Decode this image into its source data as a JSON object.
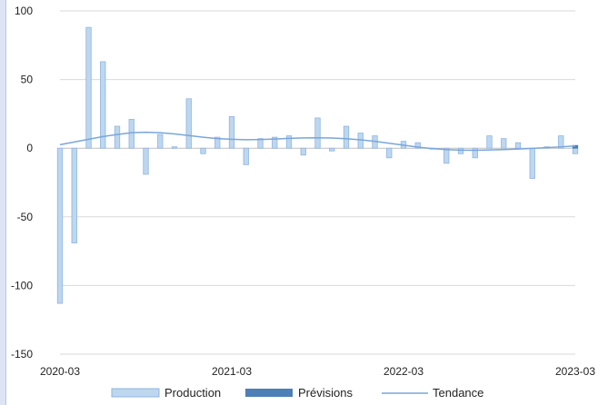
{
  "chart_data": {
    "type": "bar",
    "title": "",
    "xlabel": "",
    "ylabel": "",
    "ylim": [
      -150,
      100
    ],
    "y_ticks": [
      100,
      50,
      0,
      -50,
      -100,
      -150
    ],
    "x_tick_labels": [
      "2020-03",
      "2021-03",
      "2022-03",
      "2023-03"
    ],
    "x": [
      "2020-03",
      "2020-04",
      "2020-05",
      "2020-06",
      "2020-07",
      "2020-08",
      "2020-09",
      "2020-10",
      "2020-11",
      "2020-12",
      "2021-01",
      "2021-02",
      "2021-03",
      "2021-04",
      "2021-05",
      "2021-06",
      "2021-07",
      "2021-08",
      "2021-09",
      "2021-10",
      "2021-11",
      "2021-12",
      "2022-01",
      "2022-02",
      "2022-03",
      "2022-04",
      "2022-05",
      "2022-06",
      "2022-07",
      "2022-08",
      "2022-09",
      "2022-10",
      "2022-11",
      "2022-12",
      "2023-01",
      "2023-02",
      "2023-03"
    ],
    "grid": true,
    "legend": "bottom",
    "series": [
      {
        "name": "Production",
        "type": "bar",
        "color": "#bdd7ee",
        "stroke": "#8fb4e3",
        "values": [
          -113,
          -69,
          88,
          63,
          16,
          21,
          -19,
          10,
          1,
          36,
          -4,
          8,
          23,
          -12,
          7,
          8,
          9,
          -5,
          22,
          -2,
          16,
          11,
          9,
          -7,
          5,
          4,
          0,
          -11,
          -4,
          -7,
          9,
          7,
          4,
          -22,
          1,
          9,
          -4
        ]
      },
      {
        "name": "Prévisions",
        "type": "bar",
        "color": "#4e7fb6",
        "values": [
          null,
          null,
          null,
          null,
          null,
          null,
          null,
          null,
          null,
          null,
          null,
          null,
          null,
          null,
          null,
          null,
          null,
          null,
          null,
          null,
          null,
          null,
          null,
          null,
          null,
          null,
          null,
          null,
          null,
          null,
          null,
          null,
          null,
          null,
          null,
          null,
          2
        ]
      },
      {
        "name": "Tendance",
        "type": "line",
        "color": "#7aa6d9",
        "values": [
          2.5,
          4.5,
          6.5,
          8.5,
          10,
          11.3,
          11.6,
          11.3,
          10.4,
          9.2,
          8,
          7,
          6.5,
          6.2,
          6.3,
          6.7,
          7.2,
          7.5,
          7.6,
          7.4,
          6.9,
          6.1,
          5,
          3.6,
          2.2,
          0.8,
          -0.3,
          -1,
          -1.4,
          -1.5,
          -1.3,
          -1,
          -0.6,
          -0.1,
          0.4,
          1,
          1.6
        ]
      }
    ]
  }
}
